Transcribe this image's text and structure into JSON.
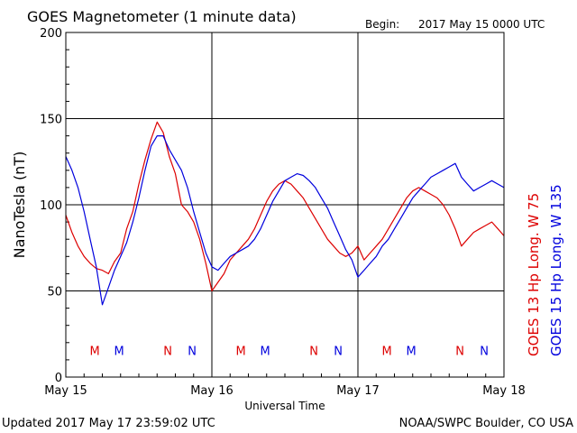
{
  "header": {
    "title": "GOES Magnetometer (1 minute data)",
    "begin_label": "Begin:",
    "begin_value": "2017 May 15 0000 UTC"
  },
  "footer": {
    "updated": "Updated 2017 May 17 23:59:02 UTC",
    "source": "NOAA/SWPC Boulder, CO USA"
  },
  "colors": {
    "goes13": "#dd0000",
    "goes15": "#0000dd",
    "grid": "#000000"
  },
  "chart_data": {
    "type": "line",
    "xlabel": "Universal Time",
    "ylabel": "NanoTesla (nT)",
    "x_unit": "hours since 2017 May 15 0000 UTC",
    "xlim": [
      0,
      72
    ],
    "ylim": [
      0,
      200
    ],
    "yticks": [
      0,
      50,
      100,
      150,
      200
    ],
    "xticks": [
      {
        "hour": 0,
        "label": "May 15"
      },
      {
        "hour": 24,
        "label": "May 16"
      },
      {
        "hour": 48,
        "label": "May 17"
      },
      {
        "hour": 72,
        "label": "May 18"
      }
    ],
    "grid": true,
    "legend_placement": "right-vertical",
    "series": [
      {
        "name": "GOES 13 Hp  Long. W 75",
        "color": "#dd0000",
        "x": [
          0,
          1,
          2,
          3,
          4,
          5,
          6,
          7,
          8,
          9,
          10,
          11,
          12,
          13,
          14,
          15,
          16,
          17,
          18,
          19,
          20,
          21,
          22,
          23,
          24,
          25,
          26,
          27,
          28,
          29,
          30,
          31,
          32,
          33,
          34,
          35,
          36,
          37,
          38,
          39,
          40,
          41,
          42,
          43,
          44,
          45,
          46,
          47,
          48,
          49,
          50,
          51,
          52,
          53,
          54,
          55,
          56,
          57,
          58,
          59,
          60,
          61,
          62,
          63,
          64,
          65,
          66,
          67,
          68,
          69,
          70,
          71,
          72
        ],
        "y": [
          94,
          84,
          76,
          70,
          66,
          63,
          62,
          60,
          67,
          72,
          86,
          96,
          112,
          126,
          138,
          148,
          142,
          128,
          118,
          100,
          96,
          90,
          80,
          66,
          50,
          55,
          60,
          68,
          72,
          76,
          80,
          86,
          94,
          102,
          108,
          112,
          114,
          112,
          108,
          104,
          98,
          92,
          86,
          80,
          76,
          72,
          70,
          72,
          76,
          68,
          72,
          76,
          80,
          86,
          92,
          98,
          104,
          108,
          110,
          108,
          106,
          104,
          100,
          94,
          86,
          76,
          80,
          84,
          86,
          88,
          90,
          86,
          82
        ]
      },
      {
        "name": "GOES 15 Hp  Long. W 135",
        "color": "#0000dd",
        "x": [
          0,
          1,
          2,
          3,
          4,
          5,
          6,
          7,
          8,
          9,
          10,
          11,
          12,
          13,
          14,
          15,
          16,
          17,
          18,
          19,
          20,
          21,
          22,
          23,
          24,
          25,
          26,
          27,
          28,
          29,
          30,
          31,
          32,
          33,
          34,
          35,
          36,
          37,
          38,
          39,
          40,
          41,
          42,
          43,
          44,
          45,
          46,
          47,
          48,
          49,
          50,
          51,
          52,
          53,
          54,
          55,
          56,
          57,
          58,
          59,
          60,
          61,
          62,
          63,
          64,
          65,
          66,
          67,
          68,
          69,
          70,
          71,
          72
        ],
        "y": [
          128,
          120,
          110,
          96,
          80,
          64,
          42,
          52,
          62,
          70,
          78,
          90,
          104,
          120,
          134,
          140,
          140,
          132,
          126,
          120,
          110,
          96,
          84,
          72,
          64,
          62,
          66,
          70,
          72,
          74,
          76,
          80,
          86,
          94,
          102,
          108,
          114,
          116,
          118,
          117,
          114,
          110,
          104,
          98,
          90,
          82,
          74,
          68,
          58,
          62,
          66,
          70,
          76,
          80,
          86,
          92,
          98,
          104,
          108,
          112,
          116,
          118,
          120,
          122,
          124,
          116,
          112,
          108,
          110,
          112,
          114,
          112,
          110
        ]
      }
    ],
    "annotations": [
      {
        "text": "M",
        "hour": 4.75,
        "y": 16,
        "series": 0
      },
      {
        "text": "M",
        "hour": 8.75,
        "y": 16,
        "series": 1
      },
      {
        "text": "N",
        "hour": 16.75,
        "y": 16,
        "series": 0
      },
      {
        "text": "N",
        "hour": 20.75,
        "y": 16,
        "series": 1
      },
      {
        "text": "M",
        "hour": 28.75,
        "y": 16,
        "series": 0
      },
      {
        "text": "M",
        "hour": 32.75,
        "y": 16,
        "series": 1
      },
      {
        "text": "N",
        "hour": 40.75,
        "y": 16,
        "series": 0
      },
      {
        "text": "N",
        "hour": 44.75,
        "y": 16,
        "series": 1
      },
      {
        "text": "M",
        "hour": 52.75,
        "y": 16,
        "series": 0
      },
      {
        "text": "M",
        "hour": 56.75,
        "y": 16,
        "series": 1
      },
      {
        "text": "N",
        "hour": 64.75,
        "y": 16,
        "series": 0
      },
      {
        "text": "N",
        "hour": 68.75,
        "y": 16,
        "series": 1
      }
    ]
  }
}
